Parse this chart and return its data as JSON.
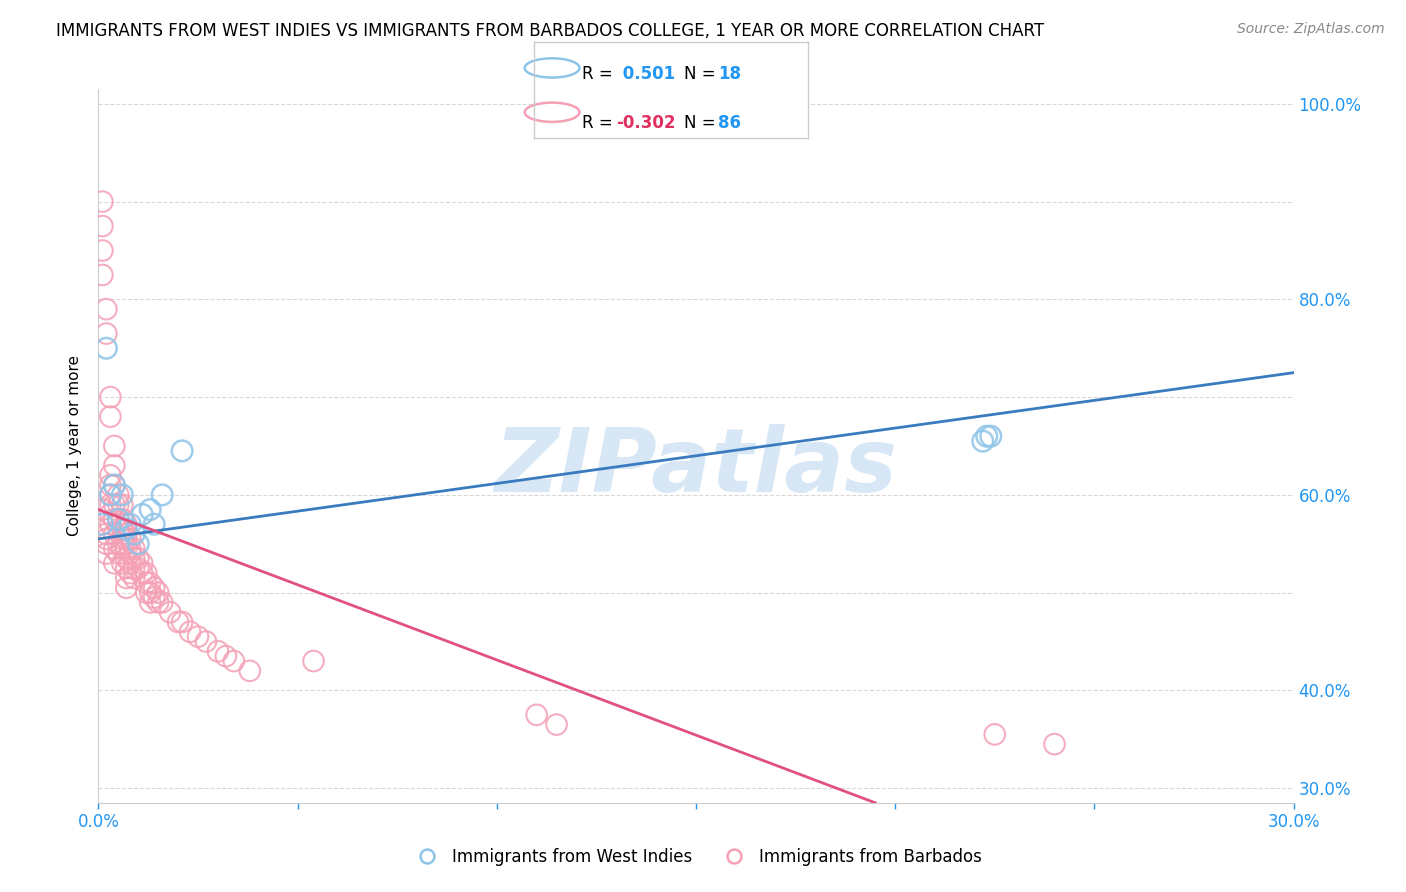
{
  "title": "IMMIGRANTS FROM WEST INDIES VS IMMIGRANTS FROM BARBADOS COLLEGE, 1 YEAR OR MORE CORRELATION CHART",
  "source": "Source: ZipAtlas.com",
  "ylabel": "College, 1 year or more",
  "legend_label1": "Immigrants from West Indies",
  "legend_label2": "Immigrants from Barbados",
  "R1": 0.501,
  "N1": 18,
  "R2": -0.302,
  "N2": 86,
  "color_blue": "#8ec4e8",
  "color_pink": "#f4a0b5",
  "color_blue_line": "#3a7bbf",
  "color_pink_line": "#e05080",
  "xlim": [
    0.0,
    0.3
  ],
  "ylim": [
    0.285,
    1.015
  ],
  "blue_line_x0": 0.0,
  "blue_line_y0": 0.555,
  "blue_line_x1": 0.3,
  "blue_line_y1": 0.725,
  "pink_line_x0": 0.0,
  "pink_line_y0": 0.585,
  "pink_line_x1": 0.195,
  "pink_line_y1": 0.285,
  "watermark": "ZIPatlas",
  "background_color": "#ffffff",
  "grid_color": "#d8d8d8",
  "blue_x": [
    0.001,
    0.002,
    0.003,
    0.004,
    0.005,
    0.006,
    0.007,
    0.008,
    0.009,
    0.01,
    0.011,
    0.013,
    0.014,
    0.016,
    0.021,
    0.222,
    0.223,
    0.224
  ],
  "blue_y": [
    0.57,
    0.75,
    0.6,
    0.61,
    0.575,
    0.6,
    0.565,
    0.57,
    0.56,
    0.55,
    0.58,
    0.585,
    0.57,
    0.6,
    0.645,
    0.655,
    0.66,
    0.66
  ],
  "pink_x": [
    0.001,
    0.001,
    0.001,
    0.001,
    0.001,
    0.002,
    0.002,
    0.002,
    0.002,
    0.002,
    0.002,
    0.003,
    0.003,
    0.003,
    0.003,
    0.003,
    0.003,
    0.003,
    0.003,
    0.004,
    0.004,
    0.004,
    0.004,
    0.004,
    0.004,
    0.004,
    0.004,
    0.005,
    0.005,
    0.005,
    0.005,
    0.005,
    0.005,
    0.006,
    0.006,
    0.006,
    0.006,
    0.006,
    0.006,
    0.007,
    0.007,
    0.007,
    0.007,
    0.007,
    0.007,
    0.007,
    0.007,
    0.008,
    0.008,
    0.008,
    0.008,
    0.008,
    0.009,
    0.009,
    0.009,
    0.009,
    0.01,
    0.01,
    0.011,
    0.011,
    0.012,
    0.012,
    0.012,
    0.013,
    0.013,
    0.013,
    0.014,
    0.014,
    0.015,
    0.015,
    0.016,
    0.018,
    0.02,
    0.021,
    0.023,
    0.025,
    0.027,
    0.03,
    0.032,
    0.034,
    0.038,
    0.054,
    0.11,
    0.115,
    0.225,
    0.24
  ],
  "pink_y": [
    0.9,
    0.875,
    0.85,
    0.825,
    0.585,
    0.79,
    0.765,
    0.56,
    0.555,
    0.55,
    0.54,
    0.7,
    0.68,
    0.62,
    0.61,
    0.6,
    0.59,
    0.58,
    0.57,
    0.65,
    0.63,
    0.61,
    0.59,
    0.575,
    0.56,
    0.545,
    0.53,
    0.6,
    0.59,
    0.575,
    0.565,
    0.55,
    0.54,
    0.59,
    0.575,
    0.565,
    0.555,
    0.545,
    0.53,
    0.57,
    0.56,
    0.555,
    0.545,
    0.535,
    0.525,
    0.515,
    0.505,
    0.555,
    0.545,
    0.54,
    0.53,
    0.52,
    0.545,
    0.535,
    0.525,
    0.515,
    0.535,
    0.525,
    0.53,
    0.52,
    0.52,
    0.51,
    0.5,
    0.51,
    0.5,
    0.49,
    0.505,
    0.495,
    0.5,
    0.49,
    0.49,
    0.48,
    0.47,
    0.47,
    0.46,
    0.455,
    0.45,
    0.44,
    0.435,
    0.43,
    0.42,
    0.43,
    0.375,
    0.365,
    0.355,
    0.345
  ]
}
